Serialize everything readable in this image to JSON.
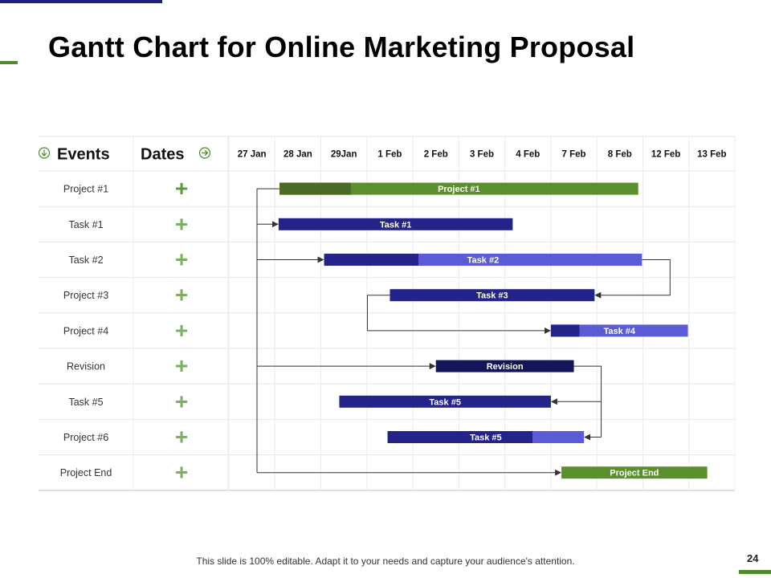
{
  "slide": {
    "title": "Gantt Chart for Online Marketing Proposal",
    "footer": "This slide is 100% editable. Adapt it to your needs and capture your audience's attention.",
    "page_number": "24"
  },
  "colors": {
    "green": "#5a8f2e",
    "dark_green": "#4a6b27",
    "navy": "#23238a",
    "dark_navy": "#14145a",
    "periwinkle": "#5b5bd6",
    "plus_green": "#5a9e3a"
  },
  "chart_data": {
    "type": "gantt",
    "header": {
      "events": "Events",
      "dates": "Dates"
    },
    "dates": [
      "27 Jan",
      "28 Jan",
      "29Jan",
      "1 Feb",
      "2 Feb",
      "3 Feb",
      "4 Feb",
      "7 Feb",
      "8 Feb",
      "12 Feb",
      "13 Feb"
    ],
    "rows": [
      "Project #1",
      "Task #1",
      "Task #2",
      "Project #3",
      "Project #4",
      "Revision",
      "Task #5",
      "Project #6",
      "Project End"
    ],
    "row_marker": "+",
    "bars": [
      {
        "row": 0,
        "label": "Project #1",
        "start": 1.1,
        "end": 8.9,
        "progress_end": 2.65,
        "color": "green",
        "progress_color": "dark_green"
      },
      {
        "row": 1,
        "label": "Task #1",
        "start": 1.08,
        "end": 6.17,
        "color": "navy"
      },
      {
        "row": 2,
        "label": "Task #2",
        "start": 2.07,
        "end": 8.98,
        "progress_end": 4.12,
        "color": "periwinkle",
        "progress_color": "navy"
      },
      {
        "row": 3,
        "label": "Task #3",
        "start": 3.5,
        "end": 7.95,
        "color": "navy"
      },
      {
        "row": 4,
        "label": "Task #4",
        "start": 7.0,
        "end": 9.98,
        "progress_end": 7.62,
        "color": "periwinkle",
        "progress_color": "navy"
      },
      {
        "row": 5,
        "label": "Revision",
        "start": 4.5,
        "end": 7.5,
        "color": "dark_navy"
      },
      {
        "row": 6,
        "label": "Task #5",
        "start": 2.4,
        "end": 7.0,
        "color": "navy"
      },
      {
        "row": 7,
        "label": "Task #5",
        "start": 3.45,
        "end": 7.72,
        "progress_end": 6.6,
        "color": "periwinkle",
        "progress_color": "navy"
      },
      {
        "row": 8,
        "label": "Project End",
        "start": 7.23,
        "end": 10.4,
        "color": "green"
      }
    ],
    "dependencies": [
      {
        "type": "left-bus",
        "from_row": 0,
        "to_rows": [
          1,
          2,
          5,
          8
        ]
      },
      {
        "type": "right-loop",
        "from_row": 2,
        "to_row": 3
      },
      {
        "type": "left-loop",
        "from_row": 3,
        "to_row": 4
      },
      {
        "type": "right-fork",
        "from_row": 5,
        "to_rows": [
          6,
          7
        ]
      }
    ]
  }
}
